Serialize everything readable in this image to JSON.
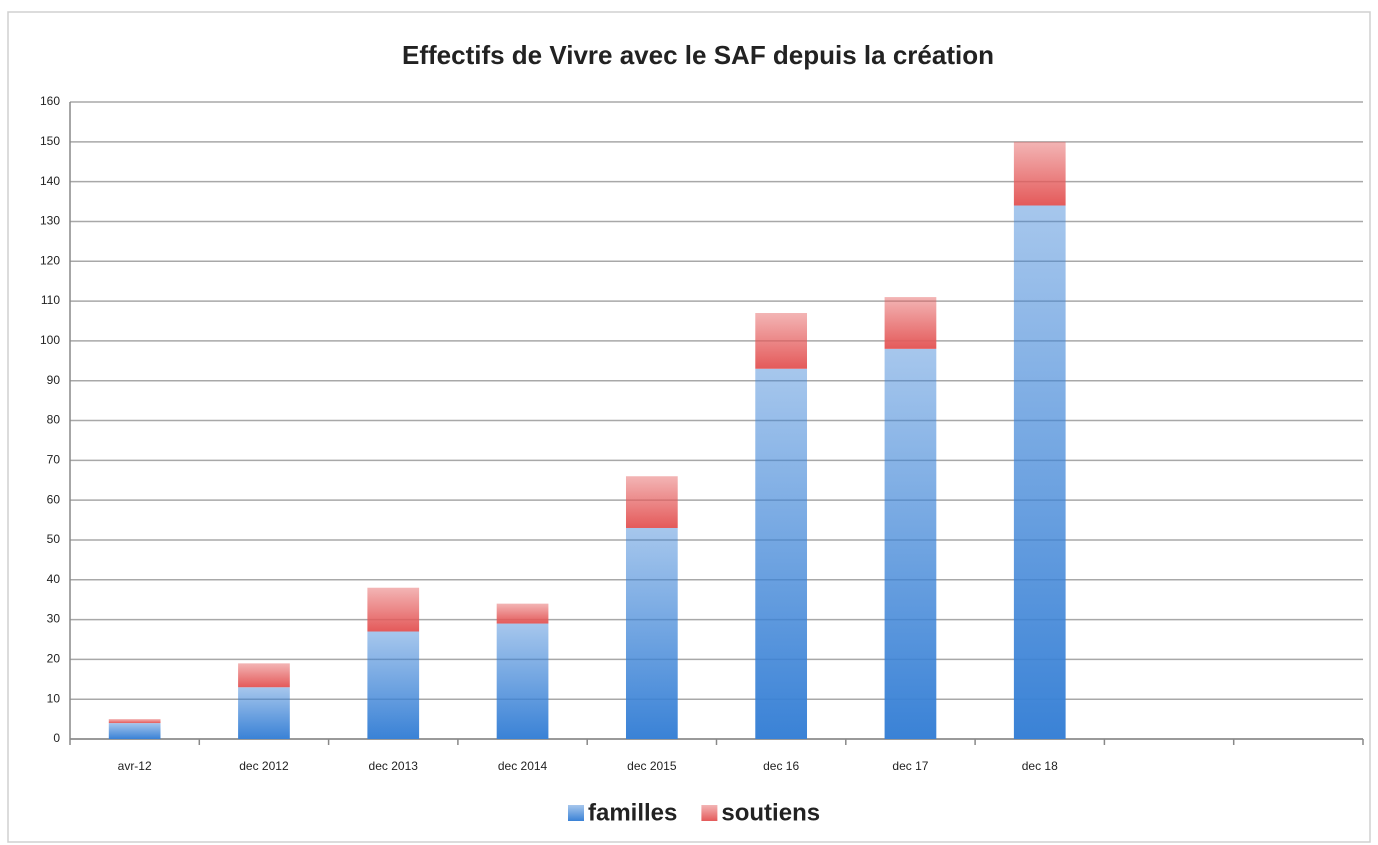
{
  "chart_data": {
    "type": "bar",
    "stacked": true,
    "title": "Effectifs de Vivre avec le SAF depuis la création",
    "categories": [
      "avr-12",
      "dec 2012",
      "dec 2013",
      "dec 2014",
      "dec 2015",
      "dec 16",
      "dec 17",
      "dec 18",
      null,
      null
    ],
    "series": [
      {
        "name": "familles",
        "color": "#3a82d6",
        "values": [
          4,
          13,
          27,
          29,
          53,
          93,
          98,
          134,
          null,
          null
        ]
      },
      {
        "name": "soutiens",
        "color": "#e45a5a",
        "values": [
          1,
          6,
          11,
          5,
          13,
          14,
          13,
          16,
          null,
          null
        ]
      }
    ],
    "ylim": [
      0,
      160
    ],
    "yticks": [
      0,
      10,
      20,
      30,
      40,
      50,
      60,
      70,
      80,
      90,
      100,
      110,
      120,
      130,
      140,
      150,
      160
    ],
    "grid": true,
    "legend": "bottom"
  }
}
